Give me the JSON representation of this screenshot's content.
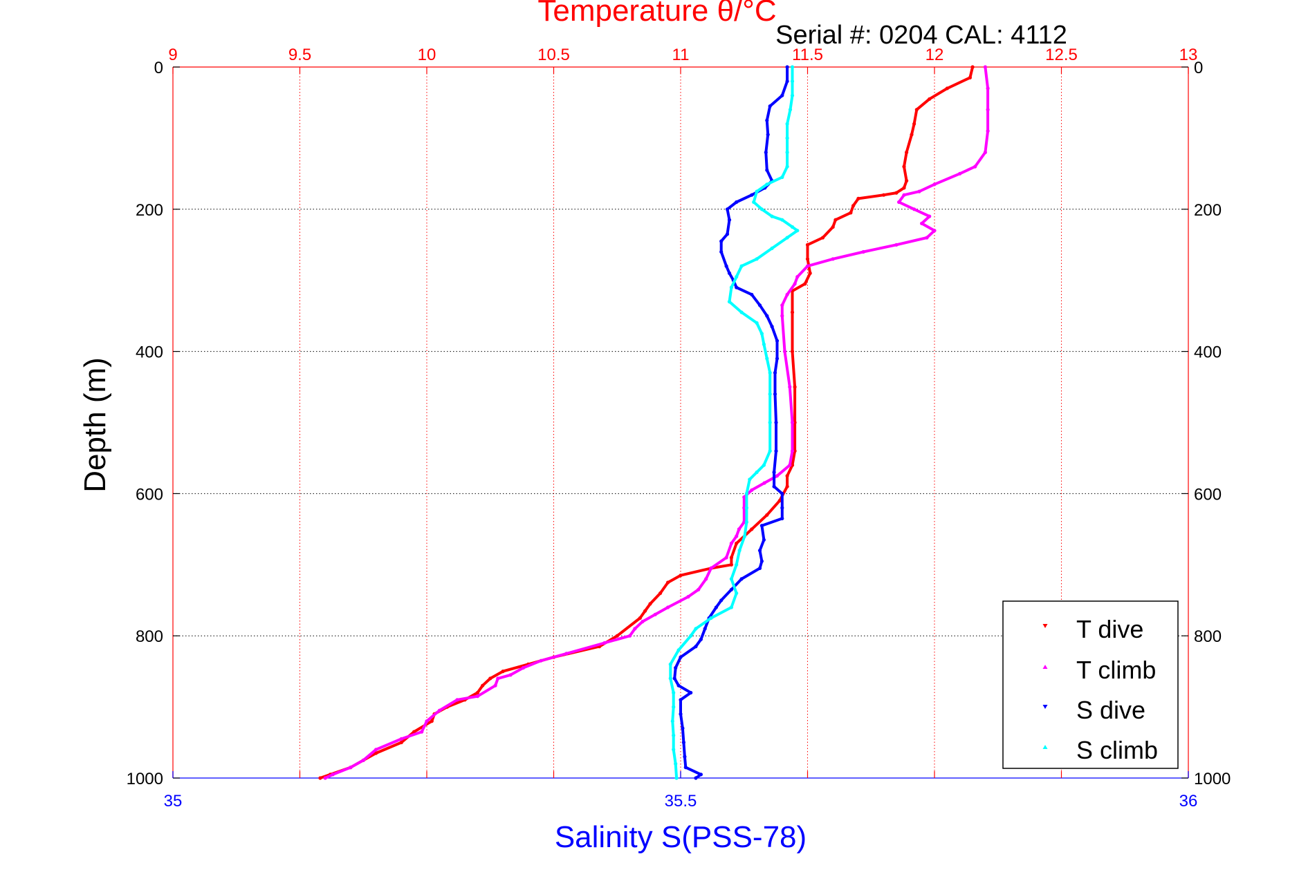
{
  "chart_data": {
    "type": "scatter",
    "title": "Temperature θ/°C",
    "subtitle": "Serial #: 0204  CAL: 4112",
    "xlabel_top": "Temperature θ/°C",
    "xlabel_bottom": "Salinity S(PSS-78)",
    "ylabel": "Depth (m)",
    "x_top_lim": [
      9,
      13
    ],
    "x_top_ticks": [
      "9",
      "9.5",
      "10",
      "10.5",
      "11",
      "11.5",
      "12",
      "12.5",
      "13"
    ],
    "x_bottom_lim": [
      35,
      36
    ],
    "x_bottom_ticks": [
      "35",
      "35.5",
      "36"
    ],
    "ylim": [
      0,
      1000
    ],
    "y_ticks": [
      "0",
      "200",
      "400",
      "600",
      "800",
      "1000"
    ],
    "y_reversed": true,
    "grid": true,
    "legend_position": "bottom-right",
    "series": [
      {
        "name": "T dive",
        "axis": "temperature",
        "color": "#ff0000",
        "marker": "triangle-down",
        "points": [
          [
            12.15,
            0
          ],
          [
            12.14,
            15
          ],
          [
            12.05,
            30
          ],
          [
            11.98,
            45
          ],
          [
            11.93,
            60
          ],
          [
            11.92,
            80
          ],
          [
            11.91,
            95
          ],
          [
            11.89,
            120
          ],
          [
            11.88,
            140
          ],
          [
            11.89,
            160
          ],
          [
            11.88,
            170
          ],
          [
            11.85,
            177
          ],
          [
            11.8,
            180
          ],
          [
            11.7,
            185
          ],
          [
            11.68,
            195
          ],
          [
            11.67,
            205
          ],
          [
            11.61,
            215
          ],
          [
            11.6,
            225
          ],
          [
            11.56,
            240
          ],
          [
            11.5,
            250
          ],
          [
            11.5,
            270
          ],
          [
            11.51,
            290
          ],
          [
            11.49,
            305
          ],
          [
            11.44,
            315
          ],
          [
            11.44,
            345
          ],
          [
            11.44,
            400
          ],
          [
            11.45,
            450
          ],
          [
            11.45,
            500
          ],
          [
            11.45,
            540
          ],
          [
            11.44,
            560
          ],
          [
            11.42,
            575
          ],
          [
            11.42,
            590
          ],
          [
            11.39,
            610
          ],
          [
            11.34,
            630
          ],
          [
            11.28,
            650
          ],
          [
            11.22,
            670
          ],
          [
            11.2,
            690
          ],
          [
            11.2,
            700
          ],
          [
            11.12,
            705
          ],
          [
            11.0,
            715
          ],
          [
            10.95,
            725
          ],
          [
            10.92,
            740
          ],
          [
            10.88,
            755
          ],
          [
            10.86,
            765
          ],
          [
            10.84,
            775
          ],
          [
            10.75,
            800
          ],
          [
            10.68,
            815
          ],
          [
            10.5,
            830
          ],
          [
            10.4,
            840
          ],
          [
            10.3,
            850
          ],
          [
            10.25,
            860
          ],
          [
            10.22,
            870
          ],
          [
            10.2,
            880
          ],
          [
            10.15,
            890
          ],
          [
            10.08,
            900
          ],
          [
            10.03,
            910
          ],
          [
            10.02,
            920
          ],
          [
            9.95,
            935
          ],
          [
            9.9,
            950
          ],
          [
            9.8,
            965
          ],
          [
            9.75,
            975
          ],
          [
            9.7,
            985
          ],
          [
            9.62,
            995
          ],
          [
            9.58,
            1000
          ]
        ]
      },
      {
        "name": "T climb",
        "axis": "temperature",
        "color": "#ff00ff",
        "marker": "triangle-up",
        "points": [
          [
            12.2,
            0
          ],
          [
            12.21,
            30
          ],
          [
            12.21,
            60
          ],
          [
            12.21,
            90
          ],
          [
            12.2,
            120
          ],
          [
            12.16,
            140
          ],
          [
            12.1,
            150
          ],
          [
            12.0,
            165
          ],
          [
            11.94,
            175
          ],
          [
            11.88,
            180
          ],
          [
            11.86,
            190
          ],
          [
            11.92,
            200
          ],
          [
            11.98,
            210
          ],
          [
            11.95,
            220
          ],
          [
            12.0,
            230
          ],
          [
            11.97,
            240
          ],
          [
            11.85,
            250
          ],
          [
            11.72,
            260
          ],
          [
            11.6,
            270
          ],
          [
            11.5,
            280
          ],
          [
            11.46,
            295
          ],
          [
            11.45,
            305
          ],
          [
            11.42,
            320
          ],
          [
            11.4,
            335
          ],
          [
            11.4,
            350
          ],
          [
            11.41,
            400
          ],
          [
            11.43,
            450
          ],
          [
            11.44,
            500
          ],
          [
            11.44,
            540
          ],
          [
            11.43,
            560
          ],
          [
            11.38,
            575
          ],
          [
            11.33,
            585
          ],
          [
            11.28,
            595
          ],
          [
            11.25,
            605
          ],
          [
            11.25,
            620
          ],
          [
            11.25,
            640
          ],
          [
            11.23,
            650
          ],
          [
            11.22,
            660
          ],
          [
            11.2,
            670
          ],
          [
            11.18,
            690
          ],
          [
            11.12,
            705
          ],
          [
            11.1,
            720
          ],
          [
            11.07,
            735
          ],
          [
            11.03,
            745
          ],
          [
            10.95,
            760
          ],
          [
            10.9,
            770
          ],
          [
            10.85,
            780
          ],
          [
            10.82,
            790
          ],
          [
            10.8,
            800
          ],
          [
            10.7,
            810
          ],
          [
            10.55,
            825
          ],
          [
            10.45,
            835
          ],
          [
            10.38,
            845
          ],
          [
            10.33,
            855
          ],
          [
            10.28,
            860
          ],
          [
            10.27,
            870
          ],
          [
            10.2,
            885
          ],
          [
            10.12,
            890
          ],
          [
            10.05,
            905
          ],
          [
            10.0,
            920
          ],
          [
            9.98,
            935
          ],
          [
            9.9,
            945
          ],
          [
            9.8,
            960
          ],
          [
            9.75,
            975
          ],
          [
            9.7,
            985
          ],
          [
            9.63,
            995
          ],
          [
            9.6,
            1000
          ]
        ]
      },
      {
        "name": "S dive",
        "axis": "salinity",
        "color": "#0000ff",
        "marker": "triangle-down",
        "points": [
          [
            35.605,
            0
          ],
          [
            35.605,
            20
          ],
          [
            35.6,
            40
          ],
          [
            35.588,
            55
          ],
          [
            35.585,
            75
          ],
          [
            35.586,
            95
          ],
          [
            35.584,
            120
          ],
          [
            35.585,
            145
          ],
          [
            35.59,
            160
          ],
          [
            35.583,
            170
          ],
          [
            35.57,
            180
          ],
          [
            35.555,
            190
          ],
          [
            35.546,
            200
          ],
          [
            35.548,
            215
          ],
          [
            35.546,
            235
          ],
          [
            35.54,
            245
          ],
          [
            35.54,
            260
          ],
          [
            35.545,
            280
          ],
          [
            35.548,
            290
          ],
          [
            35.552,
            300
          ],
          [
            35.555,
            310
          ],
          [
            35.57,
            320
          ],
          [
            35.578,
            335
          ],
          [
            35.585,
            350
          ],
          [
            35.59,
            365
          ],
          [
            35.595,
            385
          ],
          [
            35.595,
            410
          ],
          [
            35.593,
            430
          ],
          [
            35.593,
            460
          ],
          [
            35.594,
            500
          ],
          [
            35.594,
            540
          ],
          [
            35.592,
            570
          ],
          [
            35.592,
            590
          ],
          [
            35.6,
            600
          ],
          [
            35.6,
            620
          ],
          [
            35.6,
            635
          ],
          [
            35.58,
            645
          ],
          [
            35.582,
            665
          ],
          [
            35.578,
            680
          ],
          [
            35.58,
            695
          ],
          [
            35.578,
            705
          ],
          [
            35.56,
            720
          ],
          [
            35.55,
            735
          ],
          [
            35.54,
            750
          ],
          [
            35.535,
            760
          ],
          [
            35.528,
            775
          ],
          [
            35.524,
            790
          ],
          [
            35.52,
            805
          ],
          [
            35.515,
            815
          ],
          [
            35.5,
            830
          ],
          [
            35.495,
            845
          ],
          [
            35.494,
            860
          ],
          [
            35.498,
            870
          ],
          [
            35.51,
            880
          ],
          [
            35.5,
            890
          ],
          [
            35.5,
            910
          ],
          [
            35.502,
            930
          ],
          [
            35.503,
            950
          ],
          [
            35.504,
            970
          ],
          [
            35.505,
            985
          ],
          [
            35.52,
            995
          ],
          [
            35.515,
            1000
          ]
        ]
      },
      {
        "name": "S climb",
        "axis": "salinity",
        "color": "#00ffff",
        "marker": "triangle-up",
        "points": [
          [
            35.61,
            0
          ],
          [
            35.61,
            20
          ],
          [
            35.61,
            40
          ],
          [
            35.608,
            60
          ],
          [
            35.605,
            80
          ],
          [
            35.605,
            100
          ],
          [
            35.605,
            120
          ],
          [
            35.605,
            140
          ],
          [
            35.6,
            155
          ],
          [
            35.585,
            165
          ],
          [
            35.575,
            175
          ],
          [
            35.572,
            190
          ],
          [
            35.58,
            200
          ],
          [
            35.59,
            210
          ],
          [
            35.6,
            215
          ],
          [
            35.61,
            225
          ],
          [
            35.615,
            230
          ],
          [
            35.605,
            240
          ],
          [
            35.59,
            255
          ],
          [
            35.575,
            270
          ],
          [
            35.56,
            280
          ],
          [
            35.555,
            295
          ],
          [
            35.55,
            310
          ],
          [
            35.548,
            330
          ],
          [
            35.56,
            345
          ],
          [
            35.575,
            360
          ],
          [
            35.58,
            375
          ],
          [
            35.582,
            390
          ],
          [
            35.585,
            410
          ],
          [
            35.588,
            430
          ],
          [
            35.588,
            460
          ],
          [
            35.588,
            500
          ],
          [
            35.588,
            540
          ],
          [
            35.582,
            560
          ],
          [
            35.575,
            570
          ],
          [
            35.568,
            580
          ],
          [
            35.565,
            600
          ],
          [
            35.565,
            620
          ],
          [
            35.565,
            640
          ],
          [
            35.563,
            660
          ],
          [
            35.558,
            680
          ],
          [
            35.555,
            700
          ],
          [
            35.55,
            720
          ],
          [
            35.555,
            740
          ],
          [
            35.55,
            760
          ],
          [
            35.53,
            775
          ],
          [
            35.515,
            790
          ],
          [
            35.51,
            800
          ],
          [
            35.498,
            820
          ],
          [
            35.49,
            840
          ],
          [
            35.49,
            860
          ],
          [
            35.493,
            880
          ],
          [
            35.493,
            900
          ],
          [
            35.492,
            920
          ],
          [
            35.493,
            940
          ],
          [
            35.493,
            960
          ],
          [
            35.495,
            980
          ],
          [
            35.496,
            1000
          ]
        ]
      }
    ]
  },
  "legend": {
    "t_dive": "T dive",
    "t_climb": "T climb",
    "s_dive": "S dive",
    "s_climb": "S climb"
  }
}
